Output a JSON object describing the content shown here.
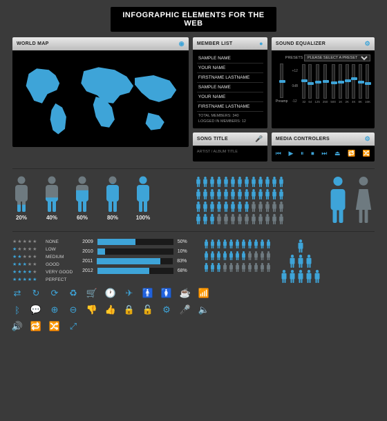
{
  "colors": {
    "background": "#3a3a3a",
    "panel_bg": "#000000",
    "panel_header_top": "#e8e8e8",
    "panel_header_bottom": "#bcbcbc",
    "accent": "#3ea4d8",
    "muted": "#6e7a80",
    "text": "#ffffff",
    "divider": "#2a2a2a"
  },
  "title": "INFOGRAPHIC ELEMENTS FOR THE WEB",
  "world_map": {
    "header": "WORLD MAP"
  },
  "member_list": {
    "header": "MEMBER LIST",
    "items": [
      "SAMPLE NAME",
      "YOUR NAME",
      "FIRSTNAME LASTNAME",
      "SAMPLE NAME",
      "YOUR NAME",
      "FIRSTNAME LASTNAME"
    ],
    "footer_total": "TOTAL MEMBERS: 340",
    "footer_logged": "LOGGED IN MEMBERS: 12"
  },
  "equalizer": {
    "header": "SOUND EQUALIZER",
    "presets_label": "PRESETS",
    "presets_placeholder": "PLEASE SELECT A PRESET",
    "preamp_label": "Preamp",
    "scale": [
      "+12",
      "0dB",
      "-12"
    ],
    "bands": [
      {
        "label": "32",
        "value": 0.55
      },
      {
        "label": "64",
        "value": 0.45
      },
      {
        "label": "125",
        "value": 0.5
      },
      {
        "label": "250",
        "value": 0.52
      },
      {
        "label": "500",
        "value": 0.48
      },
      {
        "label": "1K",
        "value": 0.5
      },
      {
        "label": "2K",
        "value": 0.55
      },
      {
        "label": "4K",
        "value": 0.6
      },
      {
        "label": "8K",
        "value": 0.5
      },
      {
        "label": "16K",
        "value": 0.45
      }
    ],
    "preamp_value": 0.5
  },
  "song": {
    "header": "SONG TITLE",
    "artist": "ARTIST / ALBUM TITLE"
  },
  "media": {
    "header": "MEDIA CONTROLERS",
    "controls": [
      "prev",
      "play",
      "pause",
      "stop",
      "next",
      "eject",
      "repeat",
      "shuffle"
    ]
  },
  "people_fill": {
    "items": [
      {
        "pct": 20,
        "label": "20%"
      },
      {
        "pct": 40,
        "label": "40%"
      },
      {
        "pct": 60,
        "label": "60%"
      },
      {
        "pct": 80,
        "label": "80%"
      },
      {
        "pct": 100,
        "label": "100%"
      }
    ],
    "fill_color": "#3ea4d8",
    "empty_color": "#6e7a80"
  },
  "pictogram_grid": {
    "rows": [
      {
        "on": 13,
        "total": 13
      },
      {
        "on": 13,
        "total": 13
      },
      {
        "on": 8,
        "total": 13
      },
      {
        "on": 3,
        "total": 13
      }
    ],
    "on_color": "#3ea4d8",
    "off_color": "#6e7a80"
  },
  "gender": {
    "male_color": "#3ea4d8",
    "female_color": "#6e7a80"
  },
  "ratings": {
    "rows": [
      {
        "stars": 0,
        "label": "NONE"
      },
      {
        "stars": 1,
        "label": "LOW"
      },
      {
        "stars": 2,
        "label": "MEDIUM"
      },
      {
        "stars": 3,
        "label": "GOOD"
      },
      {
        "stars": 4,
        "label": "VERY GOOD"
      },
      {
        "stars": 5,
        "label": "PERFECT"
      }
    ]
  },
  "year_bars": {
    "rows": [
      {
        "year": "2009",
        "pct": 50
      },
      {
        "year": "2010",
        "pct": 10
      },
      {
        "year": "2011",
        "pct": 83
      },
      {
        "year": "2012",
        "pct": 68
      }
    ],
    "track_color": "#1a1a1a",
    "fill_color": "#3ea4d8"
  },
  "row_pictograms": {
    "rows": [
      {
        "on": 11,
        "total": 11
      },
      {
        "on": 7,
        "total": 11
      },
      {
        "on": 3,
        "total": 11
      }
    ],
    "on_color": "#3ea4d8",
    "off_color": "#6e7a80"
  },
  "pyramid": {
    "tiers": [
      1,
      3,
      5
    ],
    "color": "#3ea4d8"
  },
  "icon_grid": {
    "icons": [
      "swap",
      "refresh",
      "reload",
      "recycle",
      "cart",
      "clock",
      "plane",
      "male",
      "female",
      "coffee",
      "wifi",
      "bluetooth",
      "chat",
      "zoom-in",
      "zoom-out",
      "thumbs-down",
      "thumbs-up",
      "lock",
      "unlock",
      "gear",
      "mic",
      "volume",
      "volume-up",
      "repeat",
      "shuffle",
      "expand"
    ],
    "color": "#3ea4d8"
  }
}
